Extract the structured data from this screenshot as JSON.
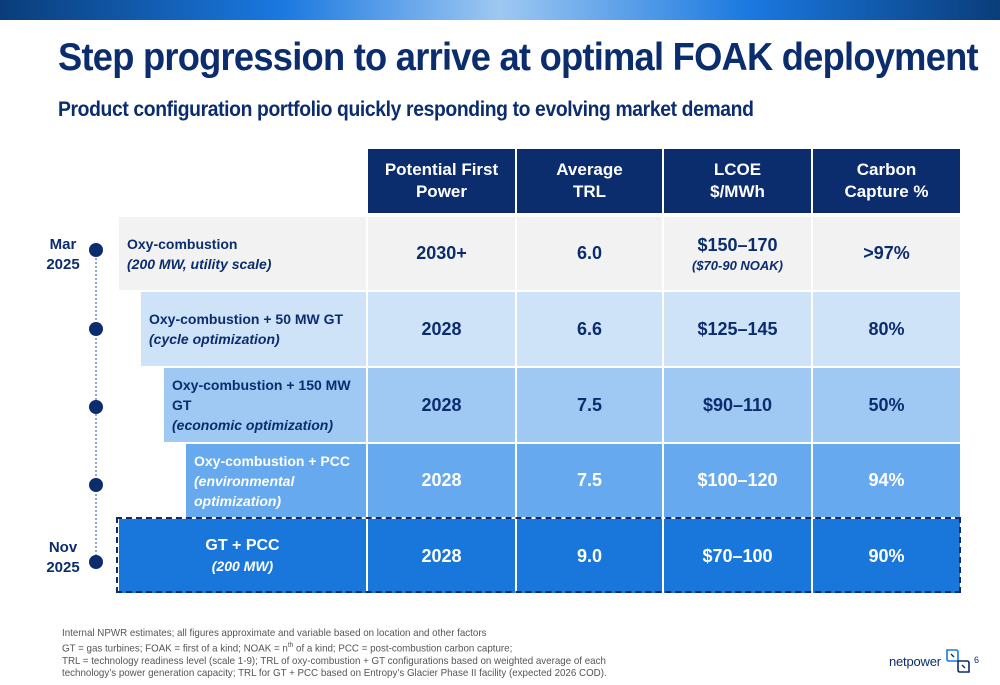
{
  "title": "Step progression to arrive at optimal FOAK deployment",
  "subtitle": "Product configuration portfolio quickly responding to evolving market demand",
  "table": {
    "headers": [
      {
        "line1": "Potential First",
        "line2": "Power"
      },
      {
        "line1": "Average",
        "line2": "TRL"
      },
      {
        "line1": "LCOE",
        "line2": "$/MWh"
      },
      {
        "line1": "Carbon",
        "line2": "Capture %"
      }
    ],
    "rows": [
      {
        "name": "Oxy-combustion",
        "detail": "(200 MW, utility scale)",
        "first_power": "2030+",
        "trl": "6.0",
        "lcoe": "$150–170",
        "lcoe_note": "($70-90 NOAK)",
        "capture": ">97%"
      },
      {
        "name": "Oxy-combustion + 50 MW GT",
        "detail": "(cycle optimization)",
        "first_power": "2028",
        "trl": "6.6",
        "lcoe": "$125–145",
        "lcoe_note": "",
        "capture": "80%"
      },
      {
        "name": "Oxy-combustion + 150 MW GT",
        "detail": "(economic optimization)",
        "first_power": "2028",
        "trl": "7.5",
        "lcoe": "$90–110",
        "lcoe_note": "",
        "capture": "50%"
      },
      {
        "name": "Oxy-combustion + PCC",
        "detail": "(environmental optimization)",
        "first_power": "2028",
        "trl": "7.5",
        "lcoe": "$100–120",
        "lcoe_note": "",
        "capture": "94%"
      },
      {
        "name": "GT + PCC",
        "detail": "(200 MW)",
        "first_power": "2028",
        "trl": "9.0",
        "lcoe": "$70–100",
        "lcoe_note": "",
        "capture": "90%"
      }
    ]
  },
  "timeline": {
    "start": {
      "month": "Mar",
      "year": "2025"
    },
    "end": {
      "month": "Nov",
      "year": "2025"
    }
  },
  "footnotes": {
    "line1": "Internal NPWR estimates; all figures approximate and variable based on location and other factors",
    "line2a": "GT = gas turbines; FOAK = first of a kind; NOAK = n",
    "line2sup": "th",
    "line2b": " of a kind; PCC = post-combustion carbon capture;",
    "line3": "TRL = technology readiness level (scale 1-9); TRL of oxy-combustion + GT configurations based on weighted average of each",
    "line4": "technology’s power generation capacity; TRL for GT + PCC based on Entropy’s Glacier Phase II facility (expected 2026 COD)."
  },
  "logo": {
    "text": "netpower"
  },
  "page_number": "6",
  "colors": {
    "navy": "#0b2d6e",
    "row1": "#f2f2f2",
    "row2": "#cfe3f8",
    "row3": "#9fc8f3",
    "row4": "#66a9ef",
    "row5": "#1977dc"
  }
}
